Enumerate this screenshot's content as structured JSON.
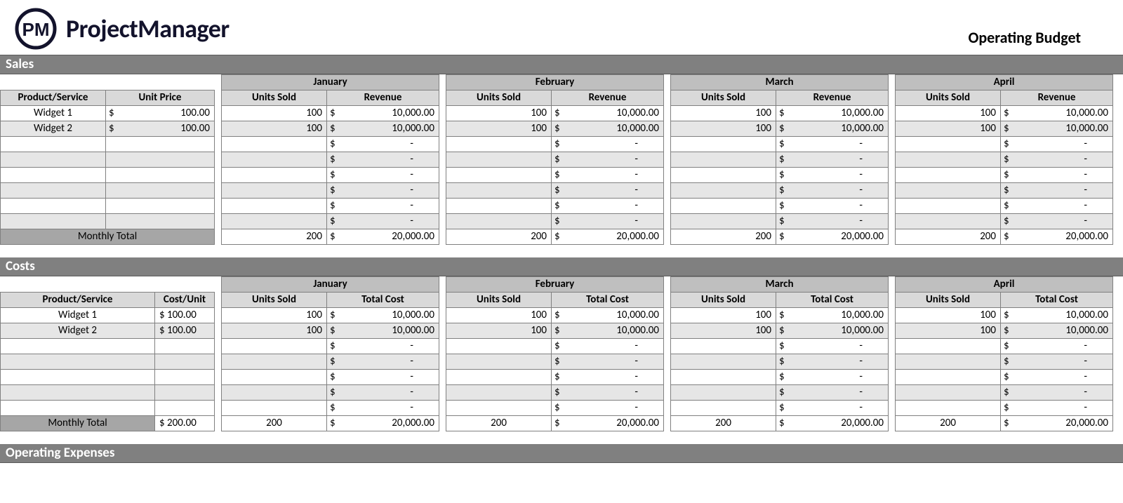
{
  "brand": {
    "name": "ProjectManager",
    "logo_text": "PM"
  },
  "doc_title": "Operating Budget",
  "months": [
    "January",
    "February",
    "March",
    "April"
  ],
  "colors": {
    "section_bg": "#808080",
    "section_fg": "#ffffff",
    "month_bg": "#bfbfbf",
    "subhead_bg": "#d9d9d9",
    "band_alt_bg": "#e6e6e6",
    "total_label_bg": "#a6a6a6",
    "grid": "#808080",
    "logo": "#13132c"
  },
  "sections": {
    "sales_title": "Sales",
    "costs_title": "Costs",
    "opex_title": "Operating Expenses"
  },
  "sales": {
    "col_headers": {
      "product": "Product/Service",
      "unit_price": "Unit Price",
      "units_sold": "Units Sold",
      "revenue": "Revenue"
    },
    "rows": [
      {
        "product": "Widget 1",
        "unit_price": "100.00",
        "months": [
          {
            "units": "100",
            "revenue": "10,000.00"
          },
          {
            "units": "100",
            "revenue": "10,000.00"
          },
          {
            "units": "100",
            "revenue": "10,000.00"
          },
          {
            "units": "100",
            "revenue": "10,000.00"
          }
        ]
      },
      {
        "product": "Widget 2",
        "unit_price": "100.00",
        "months": [
          {
            "units": "100",
            "revenue": "10,000.00"
          },
          {
            "units": "100",
            "revenue": "10,000.00"
          },
          {
            "units": "100",
            "revenue": "10,000.00"
          },
          {
            "units": "100",
            "revenue": "10,000.00"
          }
        ]
      }
    ],
    "blank_rows": 6,
    "total": {
      "label": "Monthly Total",
      "months": [
        {
          "units": "200",
          "revenue": "20,000.00"
        },
        {
          "units": "200",
          "revenue": "20,000.00"
        },
        {
          "units": "200",
          "revenue": "20,000.00"
        },
        {
          "units": "200",
          "revenue": "20,000.00"
        }
      ]
    }
  },
  "costs": {
    "col_headers": {
      "product": "Product/Service",
      "cost_unit": "Cost/Unit",
      "units_sold": "Units Sold",
      "total_cost": "Total Cost"
    },
    "rows": [
      {
        "product": "Widget 1",
        "cost_unit": "$ 100.00",
        "months": [
          {
            "units": "100",
            "cost": "10,000.00"
          },
          {
            "units": "100",
            "cost": "10,000.00"
          },
          {
            "units": "100",
            "cost": "10,000.00"
          },
          {
            "units": "100",
            "cost": "10,000.00"
          }
        ]
      },
      {
        "product": "Widget 2",
        "cost_unit": "$ 100.00",
        "months": [
          {
            "units": "100",
            "cost": "10,000.00"
          },
          {
            "units": "100",
            "cost": "10,000.00"
          },
          {
            "units": "100",
            "cost": "10,000.00"
          },
          {
            "units": "100",
            "cost": "10,000.00"
          }
        ]
      }
    ],
    "blank_rows": 5,
    "total": {
      "label": "Monthly Total",
      "cost_unit": "$ 200.00",
      "months": [
        {
          "units": "200",
          "cost": "20,000.00"
        },
        {
          "units": "200",
          "cost": "20,000.00"
        },
        {
          "units": "200",
          "cost": "20,000.00"
        },
        {
          "units": "200",
          "cost": "20,000.00"
        }
      ]
    }
  }
}
